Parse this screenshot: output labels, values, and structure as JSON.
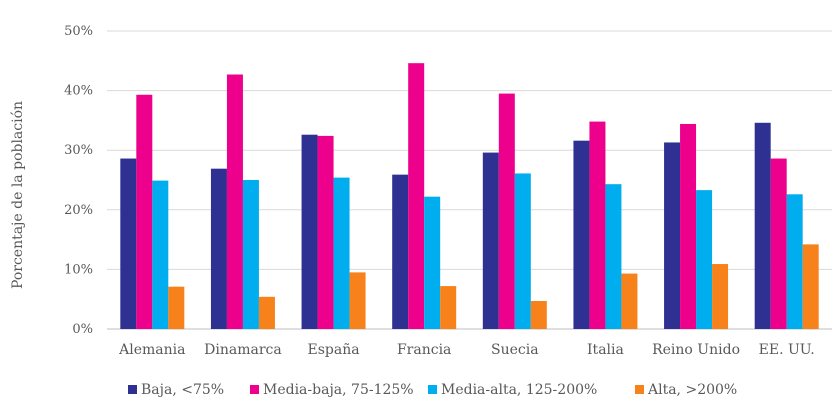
{
  "chart_data": {
    "type": "bar",
    "title": "",
    "ylabel": "Porcentaje de la población",
    "xlabel": "",
    "ylim": [
      0,
      50
    ],
    "yticks": [
      "0%",
      "10%",
      "20%",
      "30%",
      "40%",
      "50%"
    ],
    "grid": true,
    "legend_position": "bottom",
    "categories": [
      "Alemania",
      "Dinamarca",
      "España",
      "Francia",
      "Suecia",
      "Italia",
      "Reino Unido",
      "EE. UU."
    ],
    "series": [
      {
        "name": "Baja, <75%",
        "color": "#2e3192",
        "values": [
          28.6,
          26.9,
          32.6,
          25.9,
          29.6,
          31.6,
          31.3,
          34.6
        ]
      },
      {
        "name": "Media-baja, 75-125%",
        "color": "#ec008c",
        "values": [
          39.3,
          42.7,
          32.4,
          44.6,
          39.5,
          34.8,
          34.4,
          28.6
        ]
      },
      {
        "name": "Media-alta, 125-200%",
        "color": "#00aeef",
        "values": [
          24.9,
          25.0,
          25.4,
          22.2,
          26.1,
          24.3,
          23.3,
          22.6
        ]
      },
      {
        "name": "Alta, >200%",
        "color": "#f7821b",
        "values": [
          7.1,
          5.4,
          9.5,
          7.2,
          4.7,
          9.3,
          10.9,
          14.2
        ]
      }
    ]
  }
}
